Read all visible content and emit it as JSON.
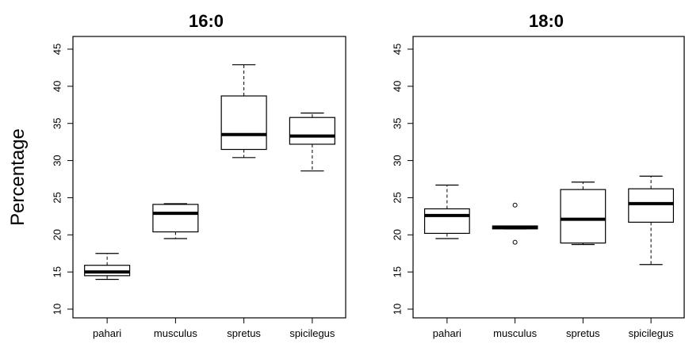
{
  "chart_data": [
    {
      "type": "boxplot",
      "title": "16:0",
      "ylabel": "Percentage",
      "xlabel": "",
      "ylim": [
        10,
        45
      ],
      "yticks": [
        10,
        15,
        20,
        25,
        30,
        35,
        40,
        45
      ],
      "categories": [
        "pahari",
        "musculus",
        "spretus",
        "spicilegus"
      ],
      "boxes": [
        {
          "min": 14.0,
          "q1": 14.5,
          "median": 15.0,
          "q3": 15.9,
          "max": 17.5,
          "outliers": []
        },
        {
          "min": 19.5,
          "q1": 20.4,
          "median": 22.9,
          "q3": 24.1,
          "max": 24.2,
          "outliers": []
        },
        {
          "min": 30.4,
          "q1": 31.5,
          "median": 33.5,
          "q3": 38.7,
          "max": 42.9,
          "outliers": []
        },
        {
          "min": 28.6,
          "q1": 32.2,
          "median": 33.3,
          "q3": 35.8,
          "max": 36.4,
          "outliers": []
        }
      ]
    },
    {
      "type": "boxplot",
      "title": "18:0",
      "ylabel": "",
      "xlabel": "",
      "ylim": [
        10,
        45
      ],
      "yticks": [
        10,
        15,
        20,
        25,
        30,
        35,
        40,
        45
      ],
      "categories": [
        "pahari",
        "musculus",
        "spretus",
        "spicilegus"
      ],
      "boxes": [
        {
          "min": 19.5,
          "q1": 20.2,
          "median": 22.6,
          "q3": 23.5,
          "max": 26.7,
          "outliers": []
        },
        {
          "min": 20.8,
          "q1": 20.8,
          "median": 21.0,
          "q3": 21.2,
          "max": 21.2,
          "outliers": [
            24.0,
            19.0
          ]
        },
        {
          "min": 18.7,
          "q1": 18.9,
          "median": 22.1,
          "q3": 26.1,
          "max": 27.1,
          "outliers": []
        },
        {
          "min": 16.0,
          "q1": 21.7,
          "median": 24.2,
          "q3": 26.2,
          "max": 27.9,
          "outliers": []
        }
      ]
    }
  ]
}
